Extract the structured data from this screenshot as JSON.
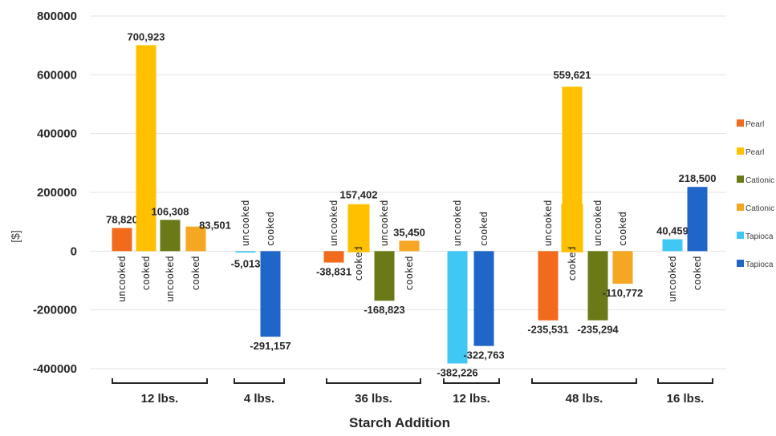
{
  "chart_data": {
    "type": "bar",
    "ylabel": "[$]",
    "xlabel": "Starch Addition",
    "ylim": [
      -400000,
      800000
    ],
    "yticks": [
      -400000,
      -200000,
      0,
      200000,
      400000,
      600000,
      800000
    ],
    "ytick_labels": [
      "-400000",
      "-200000",
      "0",
      "200000",
      "400000",
      "600000",
      "800000"
    ],
    "grid": true,
    "legend_position": "right",
    "series": [
      {
        "name": "Pearl",
        "color": "#F26B1D"
      },
      {
        "name": "Pearl",
        "color": "#FFC000"
      },
      {
        "name": "Cationic",
        "color": "#6B7A16"
      },
      {
        "name": "Cationic",
        "color": "#F5A623"
      },
      {
        "name": "Tapioca",
        "color": "#3FC8F4"
      },
      {
        "name": "Tapioca",
        "color": "#1F66C8"
      }
    ],
    "groups": [
      {
        "label": "12 lbs.",
        "bars": [
          {
            "series": 0,
            "value": 78820,
            "label": "78,820",
            "note": "uncooked"
          },
          {
            "series": 1,
            "value": 700923,
            "label": "700,923",
            "note": "cooked"
          },
          {
            "series": 2,
            "value": 106308,
            "label": "106,308",
            "note": "uncooked"
          },
          {
            "series": 3,
            "value": 83501,
            "label": "83,501",
            "note": "cooked"
          }
        ]
      },
      {
        "label": "4 lbs.",
        "bars": [
          {
            "series": 4,
            "value": -5013,
            "label": "-5,013",
            "note": "uncooked"
          },
          {
            "series": 5,
            "value": -291157,
            "label": "-291,157",
            "note": "cooked"
          }
        ]
      },
      {
        "label": "36 lbs.",
        "bars": [
          {
            "series": 0,
            "value": -38831,
            "label": "-38,831",
            "note": "uncooked"
          },
          {
            "series": 1,
            "value": 157402,
            "label": "157,402",
            "note": "cooked",
            "highlight": true
          },
          {
            "series": 2,
            "value": -168823,
            "label": "-168,823",
            "note": "uncooked"
          },
          {
            "series": 3,
            "value": 35450,
            "label": "35,450",
            "note": "cooked"
          }
        ]
      },
      {
        "label": "12 lbs.",
        "bars": [
          {
            "series": 4,
            "value": -382226,
            "label": "-382,226",
            "note": "uncooked"
          },
          {
            "series": 5,
            "value": -322763,
            "label": "-322,763",
            "note": "cooked"
          }
        ]
      },
      {
        "label": "48 lbs.",
        "bars": [
          {
            "series": 0,
            "value": -235531,
            "label": "-235,531",
            "note": "uncooked"
          },
          {
            "series": 1,
            "value": 559621,
            "label": "559,621",
            "note": "cooked",
            "highlight": true
          },
          {
            "series": 2,
            "value": -235294,
            "label": "-235,294",
            "note": "uncooked"
          },
          {
            "series": 3,
            "value": -110772,
            "label": "-110,772",
            "note": "cooked"
          }
        ]
      },
      {
        "label": "16 lbs.",
        "bars": [
          {
            "series": 4,
            "value": 40459,
            "label": "40,459",
            "note": "uncooked"
          },
          {
            "series": 5,
            "value": 218500,
            "label": "218,500",
            "note": "cooked"
          }
        ]
      }
    ]
  }
}
